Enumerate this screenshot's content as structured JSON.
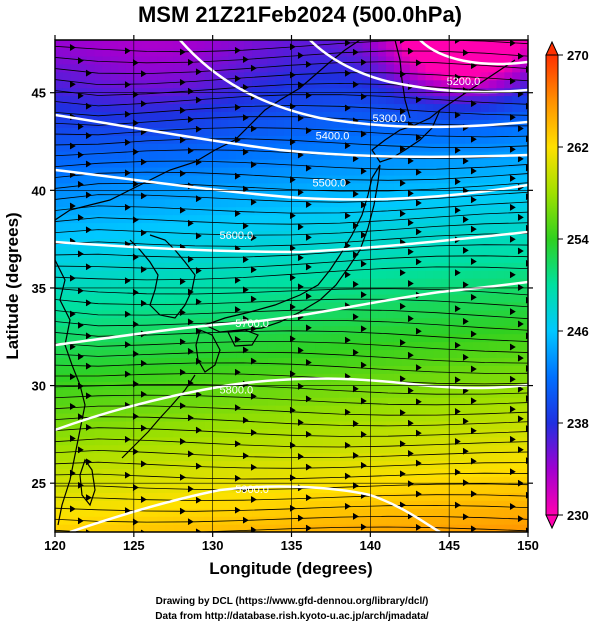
{
  "title": "MSM 21Z21Feb2024 (500.0hPa)",
  "xlabel": "Longitude (degrees)",
  "ylabel": "Latitude  (degrees)",
  "credits": [
    "Drawing by DCL (https://www.gfd-dennou.org/library/dcl/)",
    "Data from http://database.rish.kyoto-u.ac.jp/arch/jmadata/"
  ],
  "colors": {
    "cold": "#8000c0",
    "cool": "#00c8ff",
    "mid": "#40d020",
    "warm": "#ffd000",
    "hot": "#ff5000",
    "contour": "#ffffff",
    "streamline": "#000000",
    "coast": "#000000"
  },
  "map": {
    "lon_range": [
      120,
      150
    ],
    "lat_range": [
      22.5,
      47.7
    ],
    "x_ticks": [
      120,
      125,
      130,
      135,
      140,
      145,
      150
    ],
    "x_tick_labels": [
      "120",
      "125",
      "130",
      "135",
      "140",
      "145",
      "150"
    ],
    "y_ticks": [
      25,
      30,
      35,
      40,
      45
    ],
    "y_tick_labels": [
      "25",
      "30",
      "35",
      "40",
      "45"
    ],
    "grid": true,
    "field": "temperature",
    "field_range": [
      230,
      270
    ],
    "contour_field": "geopotential height",
    "contour_labels": [
      {
        "text": "5200.0",
        "lon": 145.9,
        "lat": 45.4
      },
      {
        "text": "5300.0",
        "lon": 141.2,
        "lat": 43.5
      },
      {
        "text": "5400.0",
        "lon": 137.6,
        "lat": 42.6
      },
      {
        "text": "5500.0",
        "lon": 137.4,
        "lat": 40.2
      },
      {
        "text": "5600.0",
        "lon": 131.5,
        "lat": 37.5
      },
      {
        "text": "5700.0",
        "lon": 132.5,
        "lat": 33.0
      },
      {
        "text": "5800.0",
        "lon": 131.5,
        "lat": 29.6
      },
      {
        "text": "5900.0",
        "lon": 132.5,
        "lat": 24.5
      }
    ]
  },
  "colorbar": {
    "ticks": [
      230,
      238,
      246,
      254,
      262,
      270
    ],
    "tick_labels": [
      "230",
      "238",
      "246",
      "254",
      "262",
      "270"
    ],
    "extend": "both"
  },
  "chart_data": {
    "type": "heatmap",
    "title": "MSM 21Z21Feb2024 (500.0hPa)",
    "xlabel": "Longitude (degrees)",
    "ylabel": "Latitude  (degrees)",
    "xlim": [
      120,
      150
    ],
    "ylim": [
      22.5,
      47.7
    ],
    "colorbar_range": [
      230,
      270
    ],
    "contour_levels": [
      5200,
      5300,
      5400,
      5500,
      5600,
      5700,
      5800,
      5900
    ],
    "grid": true,
    "legend": "right colorbar"
  }
}
